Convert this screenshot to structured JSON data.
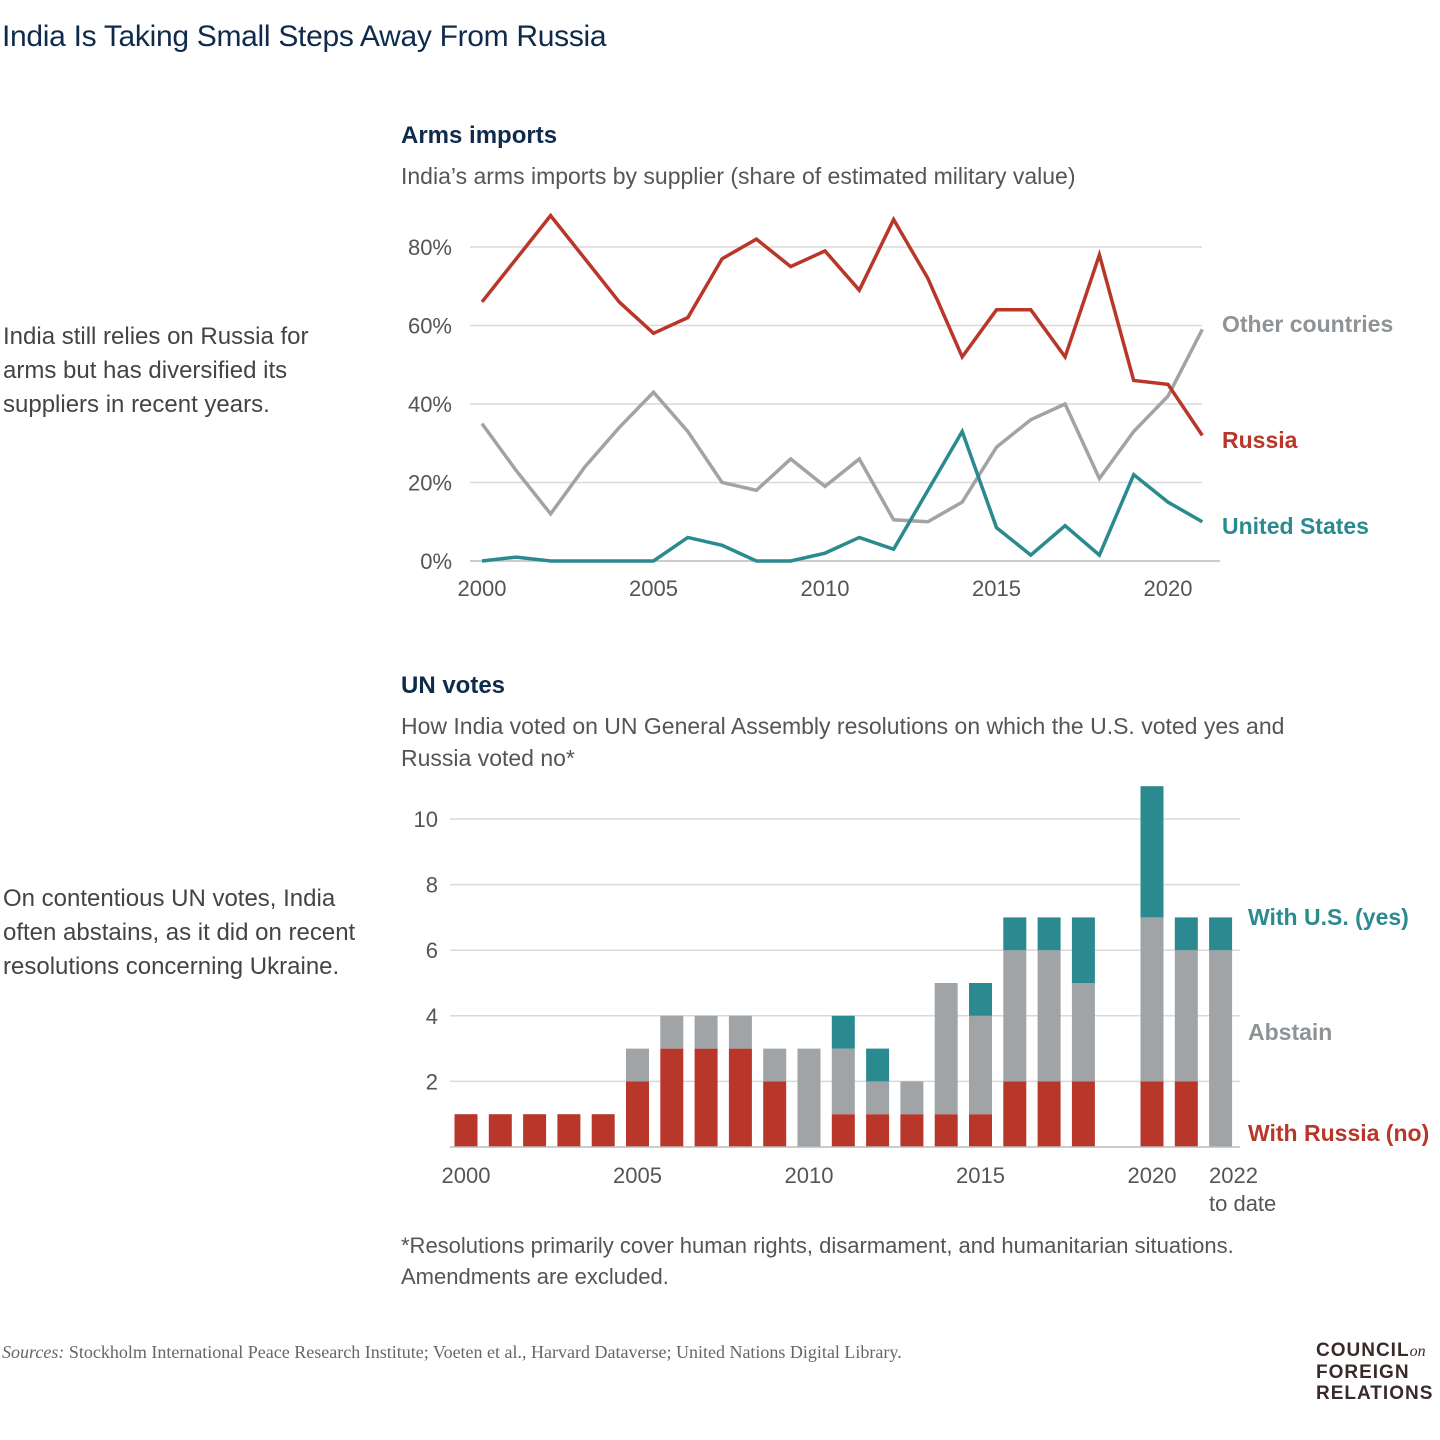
{
  "title": "India Is Taking Small Steps Away From Russia",
  "side_notes": [
    "India still relies on Russia for arms but has diversified its suppliers in recent years.",
    "On contentious UN votes, India often abstains, as it did on recent resolutions concerning Ukraine."
  ],
  "footnote": "*Resolutions primarily cover human rights, disarmament, and humanitarian situations. Amendments are excluded.",
  "sources": {
    "label": "Sources:",
    "text": "Stockholm International Peace Research Institute; Voeten et al., Harvard Dataverse; United Nations Digital Library."
  },
  "logo": {
    "line1": "COUNCIL",
    "on": "on",
    "line2": "FOREIGN",
    "line3": "RELATIONS"
  },
  "colors": {
    "russia": "#b8372a",
    "us": "#2b8a8f",
    "other": "#a0a4a6",
    "title": "#0f2b4c"
  },
  "chart_data": [
    {
      "type": "line",
      "title": "Arms imports",
      "subtitle": "India’s arms imports by supplier (share of estimated military value)",
      "x": [
        2000,
        2001,
        2002,
        2003,
        2004,
        2005,
        2006,
        2007,
        2008,
        2009,
        2010,
        2011,
        2012,
        2013,
        2014,
        2015,
        2016,
        2017,
        2018,
        2019,
        2020,
        2021
      ],
      "x_ticks": [
        "2000",
        "2005",
        "2010",
        "2015",
        "2020"
      ],
      "y_ticks": [
        "0%",
        "20%",
        "40%",
        "60%",
        "80%"
      ],
      "ylim": [
        0,
        80
      ],
      "grid": true,
      "legend": "right (direct labels)",
      "series": [
        {
          "name": "Russia",
          "color": "#b8372a",
          "values": [
            66,
            77,
            88,
            77,
            66,
            58,
            62,
            77,
            82,
            75,
            79,
            69,
            87,
            72,
            52,
            64,
            64,
            52,
            78,
            46,
            45,
            32
          ]
        },
        {
          "name": "Other countries",
          "color": "#a0a4a6",
          "values": [
            35,
            23,
            12,
            24,
            34,
            43,
            33,
            20,
            18,
            26,
            19,
            26,
            10.5,
            10,
            15,
            29,
            36,
            40,
            21,
            33,
            42,
            59
          ]
        },
        {
          "name": "United States",
          "color": "#2b8a8f",
          "values": [
            0,
            1,
            0,
            0,
            0,
            0,
            6,
            4,
            0,
            0,
            2,
            6,
            3,
            18,
            33,
            8.5,
            1.5,
            9,
            1.5,
            22,
            15,
            10
          ]
        }
      ]
    },
    {
      "type": "bar",
      "stacked": true,
      "title": "UN votes",
      "subtitle": "How India voted on UN General Assembly resolutions on which the U.S. voted yes and Russia voted no*",
      "categories": [
        2000,
        2001,
        2002,
        2003,
        2004,
        2005,
        2006,
        2007,
        2008,
        2009,
        2010,
        2011,
        2012,
        2013,
        2014,
        2015,
        2016,
        2017,
        2018,
        2019,
        2020,
        2021,
        2022
      ],
      "x_ticks": [
        "2000",
        "2005",
        "2010",
        "2015",
        "2020",
        "2022"
      ],
      "x_tick_note": "to date",
      "y_ticks": [
        "2",
        "4",
        "6",
        "8",
        "10"
      ],
      "ylim": [
        0,
        11
      ],
      "grid": true,
      "legend": "right (direct labels)",
      "series": [
        {
          "name": "With Russia (no)",
          "color": "#b8372a",
          "values": [
            1,
            1,
            1,
            1,
            1,
            2,
            3,
            3,
            3,
            2,
            0,
            1,
            1,
            1,
            1,
            1,
            2,
            2,
            2,
            0,
            2,
            2,
            0
          ]
        },
        {
          "name": "Abstain",
          "color": "#a0a4a6",
          "values": [
            0,
            0,
            0,
            0,
            0,
            1,
            1,
            1,
            1,
            1,
            3,
            2,
            1,
            1,
            4,
            3,
            4,
            4,
            3,
            0,
            5,
            4,
            6
          ]
        },
        {
          "name": "With U.S. (yes)",
          "color": "#2b8a8f",
          "values": [
            0,
            0,
            0,
            0,
            0,
            0,
            0,
            0,
            0,
            0,
            0,
            1,
            1,
            0,
            0,
            1,
            1,
            1,
            2,
            0,
            4,
            1,
            1
          ]
        }
      ]
    }
  ]
}
